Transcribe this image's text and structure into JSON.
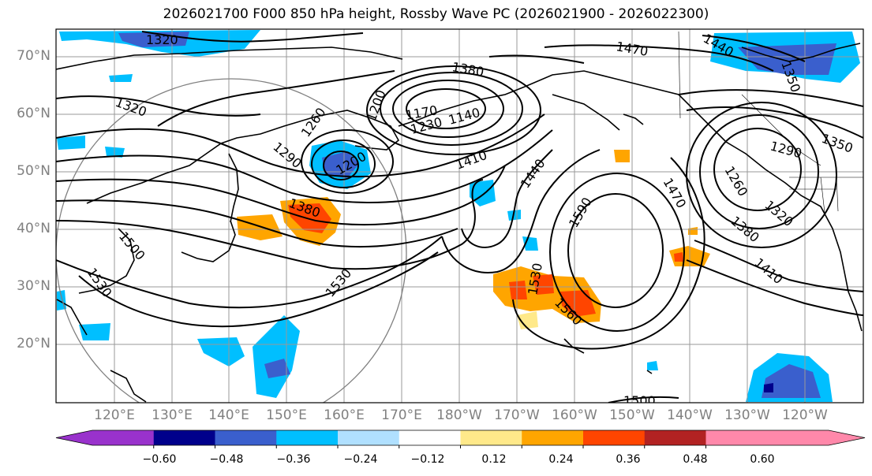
{
  "title": "2026021700 F000 850 hPa height, Rossby Wave PC (2026021900 - 2026022300)",
  "lat_labels": [
    "70°N",
    "60°N",
    "50°N",
    "40°N",
    "30°N",
    "20°N"
  ],
  "lon_labels": [
    "120°E",
    "130°E",
    "140°E",
    "150°E",
    "160°E",
    "170°E",
    "180°W",
    "170°W",
    "160°W",
    "150°W",
    "140°W",
    "130°W",
    "120°W"
  ],
  "colorbar": {
    "ticks": [
      "−0.60",
      "−0.48",
      "−0.36",
      "−0.24",
      "−0.12",
      "0.12",
      "0.24",
      "0.36",
      "0.48",
      "0.60"
    ],
    "colors": [
      "#9932cc",
      "#00008b",
      "#3a5fcd",
      "#00bfff",
      "#b0e0ff",
      "#ffffff",
      "#ffe98a",
      "#ffa500",
      "#ff4500",
      "#b22222",
      "#ff88aa",
      "#ff88aa"
    ]
  },
  "contour_labels": [
    "1320",
    "1470",
    "1440",
    "1350",
    "1320",
    "1380",
    "1260",
    "1290",
    "1200",
    "1200",
    "1170",
    "1230",
    "1140",
    "1410",
    "1440",
    "1470",
    "1590",
    "1380",
    "1500",
    "1530",
    "1530",
    "1530",
    "1560",
    "1290",
    "1350",
    "1260",
    "1320",
    "1380",
    "1410",
    "1500"
  ]
}
